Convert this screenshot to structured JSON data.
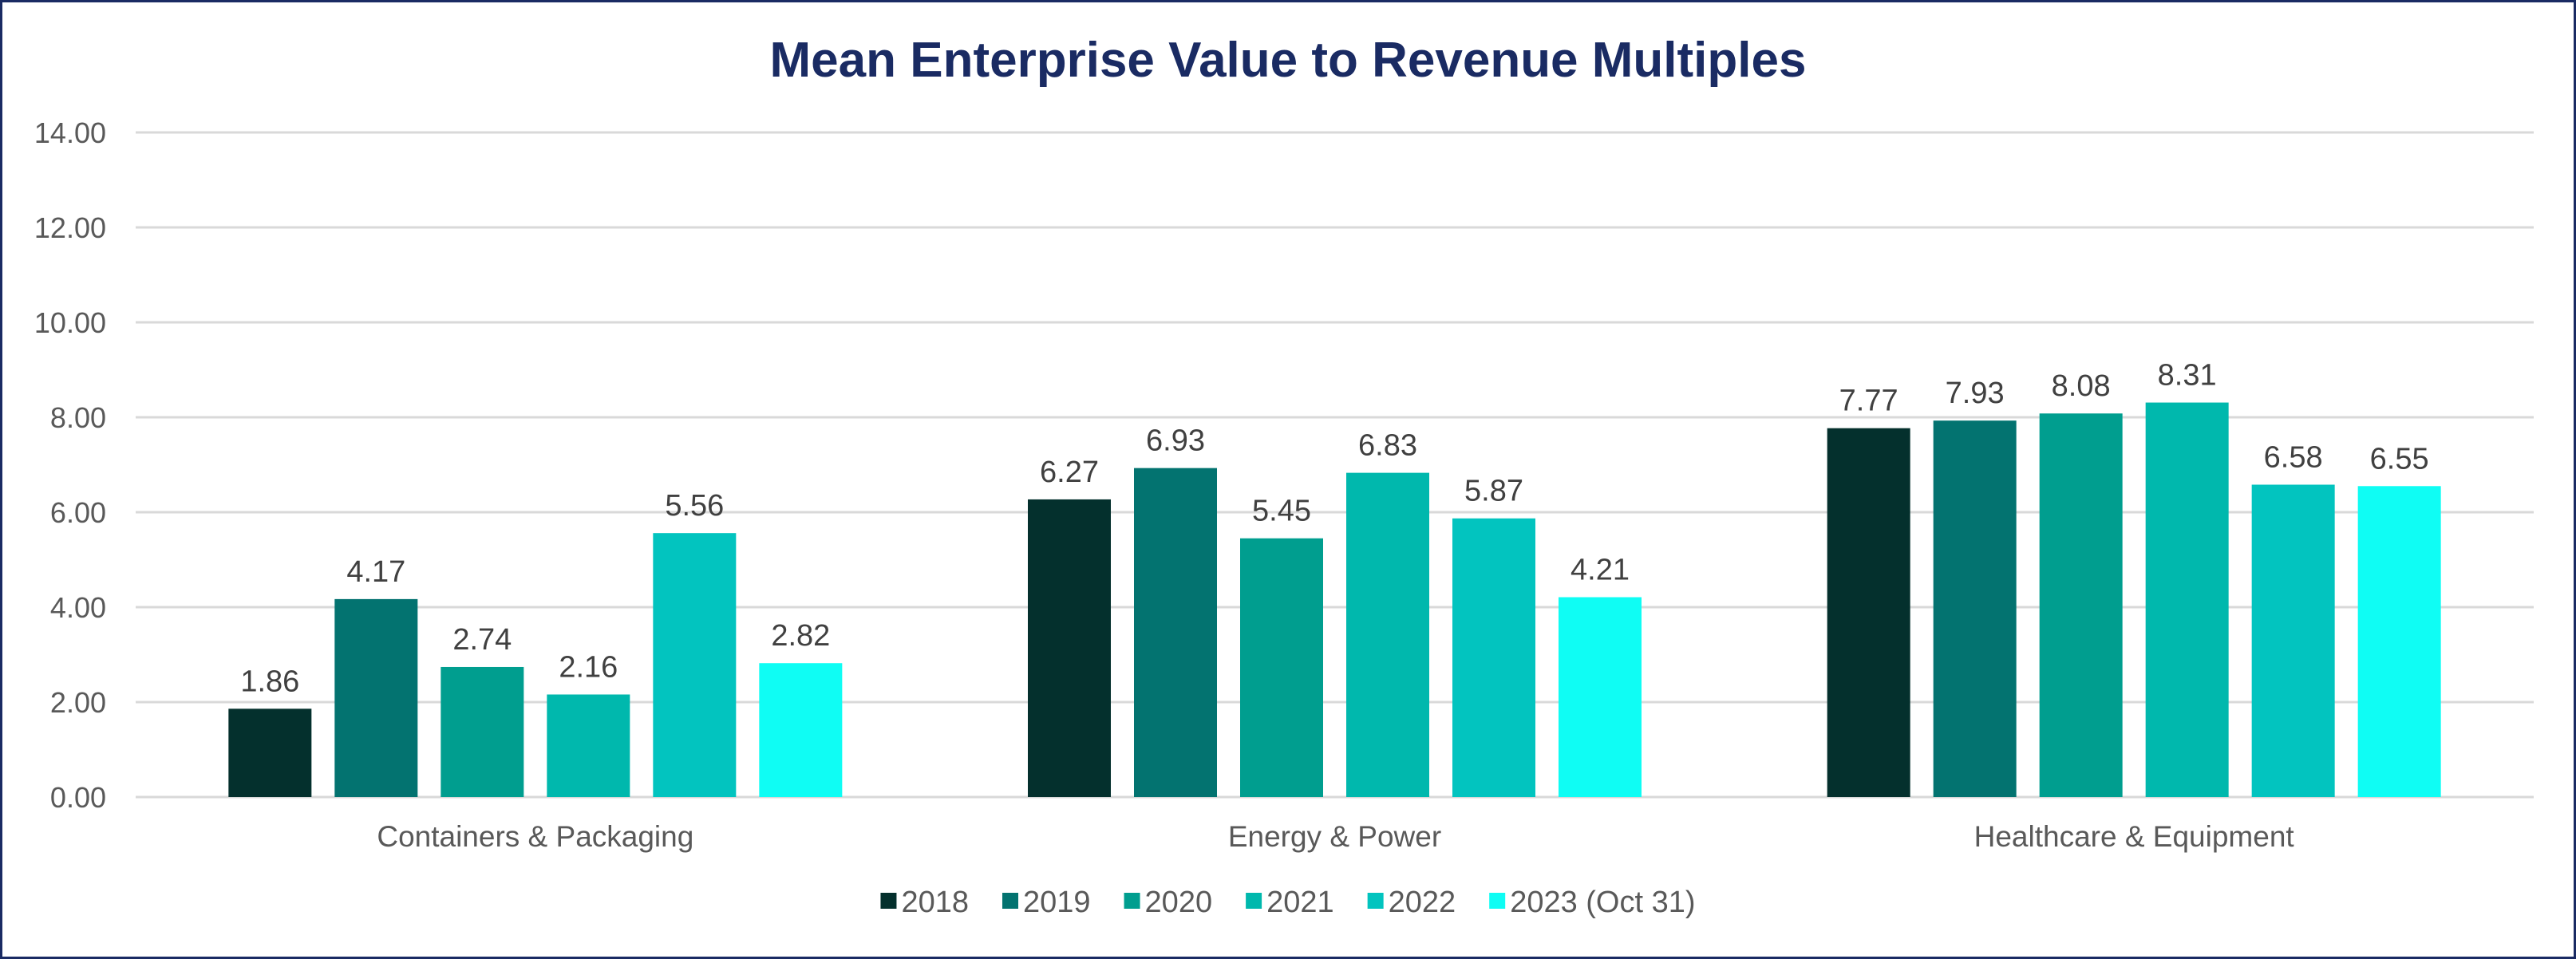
{
  "chart_data": {
    "type": "bar",
    "title": "Mean Enterprise Value to Revenue Multiples",
    "xlabel": "",
    "ylabel": "",
    "ylim": [
      0,
      14
    ],
    "yticks": [
      0,
      2,
      4,
      6,
      8,
      10,
      12,
      14
    ],
    "ytick_labels": [
      "0.00",
      "2.00",
      "4.00",
      "6.00",
      "8.00",
      "10.00",
      "12.00",
      "14.00"
    ],
    "grid": true,
    "legend_position": "bottom",
    "categories": [
      "Containers & Packaging",
      "Energy & Power",
      "Healthcare & Equipment"
    ],
    "series": [
      {
        "name": "2018",
        "color": "#04302d",
        "values": [
          1.86,
          6.27,
          7.77
        ],
        "labels": [
          "1.86",
          "6.27",
          "7.77"
        ]
      },
      {
        "name": "2019",
        "color": "#037370",
        "values": [
          4.17,
          6.93,
          7.93
        ],
        "labels": [
          "4.17",
          "6.93",
          "7.93"
        ]
      },
      {
        "name": "2020",
        "color": "#009e8f",
        "values": [
          2.74,
          5.45,
          8.08
        ],
        "labels": [
          "2.74",
          "5.45",
          "8.08"
        ]
      },
      {
        "name": "2021",
        "color": "#00b8ad",
        "values": [
          2.16,
          6.83,
          8.31
        ],
        "labels": [
          "2.16",
          "6.83",
          "8.31"
        ]
      },
      {
        "name": "2022",
        "color": "#02c4bf",
        "values": [
          5.56,
          5.87,
          6.58
        ],
        "labels": [
          "5.56",
          "5.87",
          "6.58"
        ]
      },
      {
        "name": "2023 (Oct 31)",
        "color": "#0ffdf4",
        "values": [
          2.82,
          4.21,
          6.55
        ],
        "labels": [
          "2.82",
          "4.21",
          "6.55"
        ]
      }
    ]
  },
  "colors": {
    "title": "#1a2b63",
    "border": "#1a2b63",
    "gridline": "#d9d9d9",
    "axis_text": "#595959",
    "data_label": "#404040"
  }
}
